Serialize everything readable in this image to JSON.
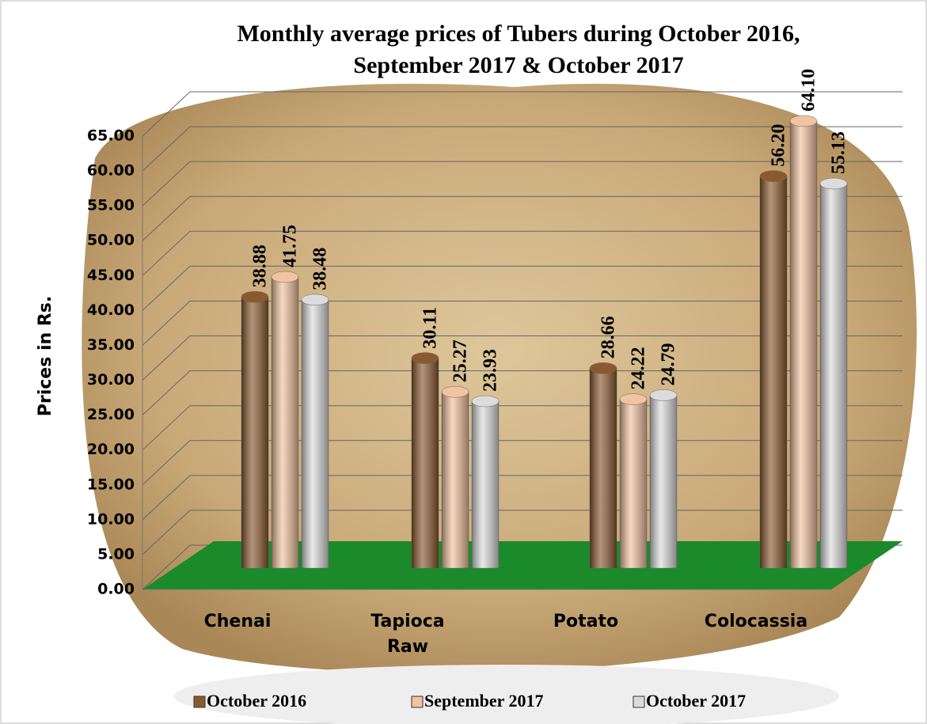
{
  "chart_data": {
    "type": "bar",
    "title": [
      "Monthly average prices of Tubers during  October 2016,",
      "September  2017 & October  2017"
    ],
    "y_label": "Prices in Rs.",
    "categories": [
      "Chenai",
      "Tapioca Raw",
      "Potato",
      "Colocassia"
    ],
    "series": [
      {
        "name": "October 2016",
        "color": "#8a5a2e",
        "values": [
          38.88,
          30.11,
          28.66,
          56.2
        ],
        "value_labels": [
          "38.88",
          "30.11",
          "28.66",
          "56.20"
        ]
      },
      {
        "name": "September 2017",
        "color": "#f2c3a0",
        "values": [
          41.75,
          25.27,
          24.22,
          64.1
        ],
        "value_labels": [
          "41.75",
          "25.27",
          "24.22",
          "64.10"
        ]
      },
      {
        "name": "October 2017",
        "color": "#dcdcdc",
        "values": [
          38.48,
          23.93,
          24.79,
          55.13
        ],
        "value_labels": [
          "38.48",
          "23.93",
          "24.79",
          "55.13"
        ]
      }
    ],
    "ylim": [
      0,
      65
    ],
    "yticks": [
      {
        "value": 0,
        "label": "0.00"
      },
      {
        "value": 5,
        "label": "5.00"
      },
      {
        "value": 10,
        "label": "10.00"
      },
      {
        "value": 15,
        "label": "15.00"
      },
      {
        "value": 20,
        "label": "20.00"
      },
      {
        "value": 25,
        "label": "25.00"
      },
      {
        "value": 30,
        "label": "30.00"
      },
      {
        "value": 35,
        "label": "35.00"
      },
      {
        "value": 40,
        "label": "40.00"
      },
      {
        "value": 45,
        "label": "45.00"
      },
      {
        "value": 50,
        "label": "50.00"
      },
      {
        "value": 55,
        "label": "55.00"
      },
      {
        "value": 60,
        "label": "60.00"
      },
      {
        "value": 65,
        "label": "65.00"
      }
    ],
    "grid": true,
    "legend": "bottom"
  }
}
